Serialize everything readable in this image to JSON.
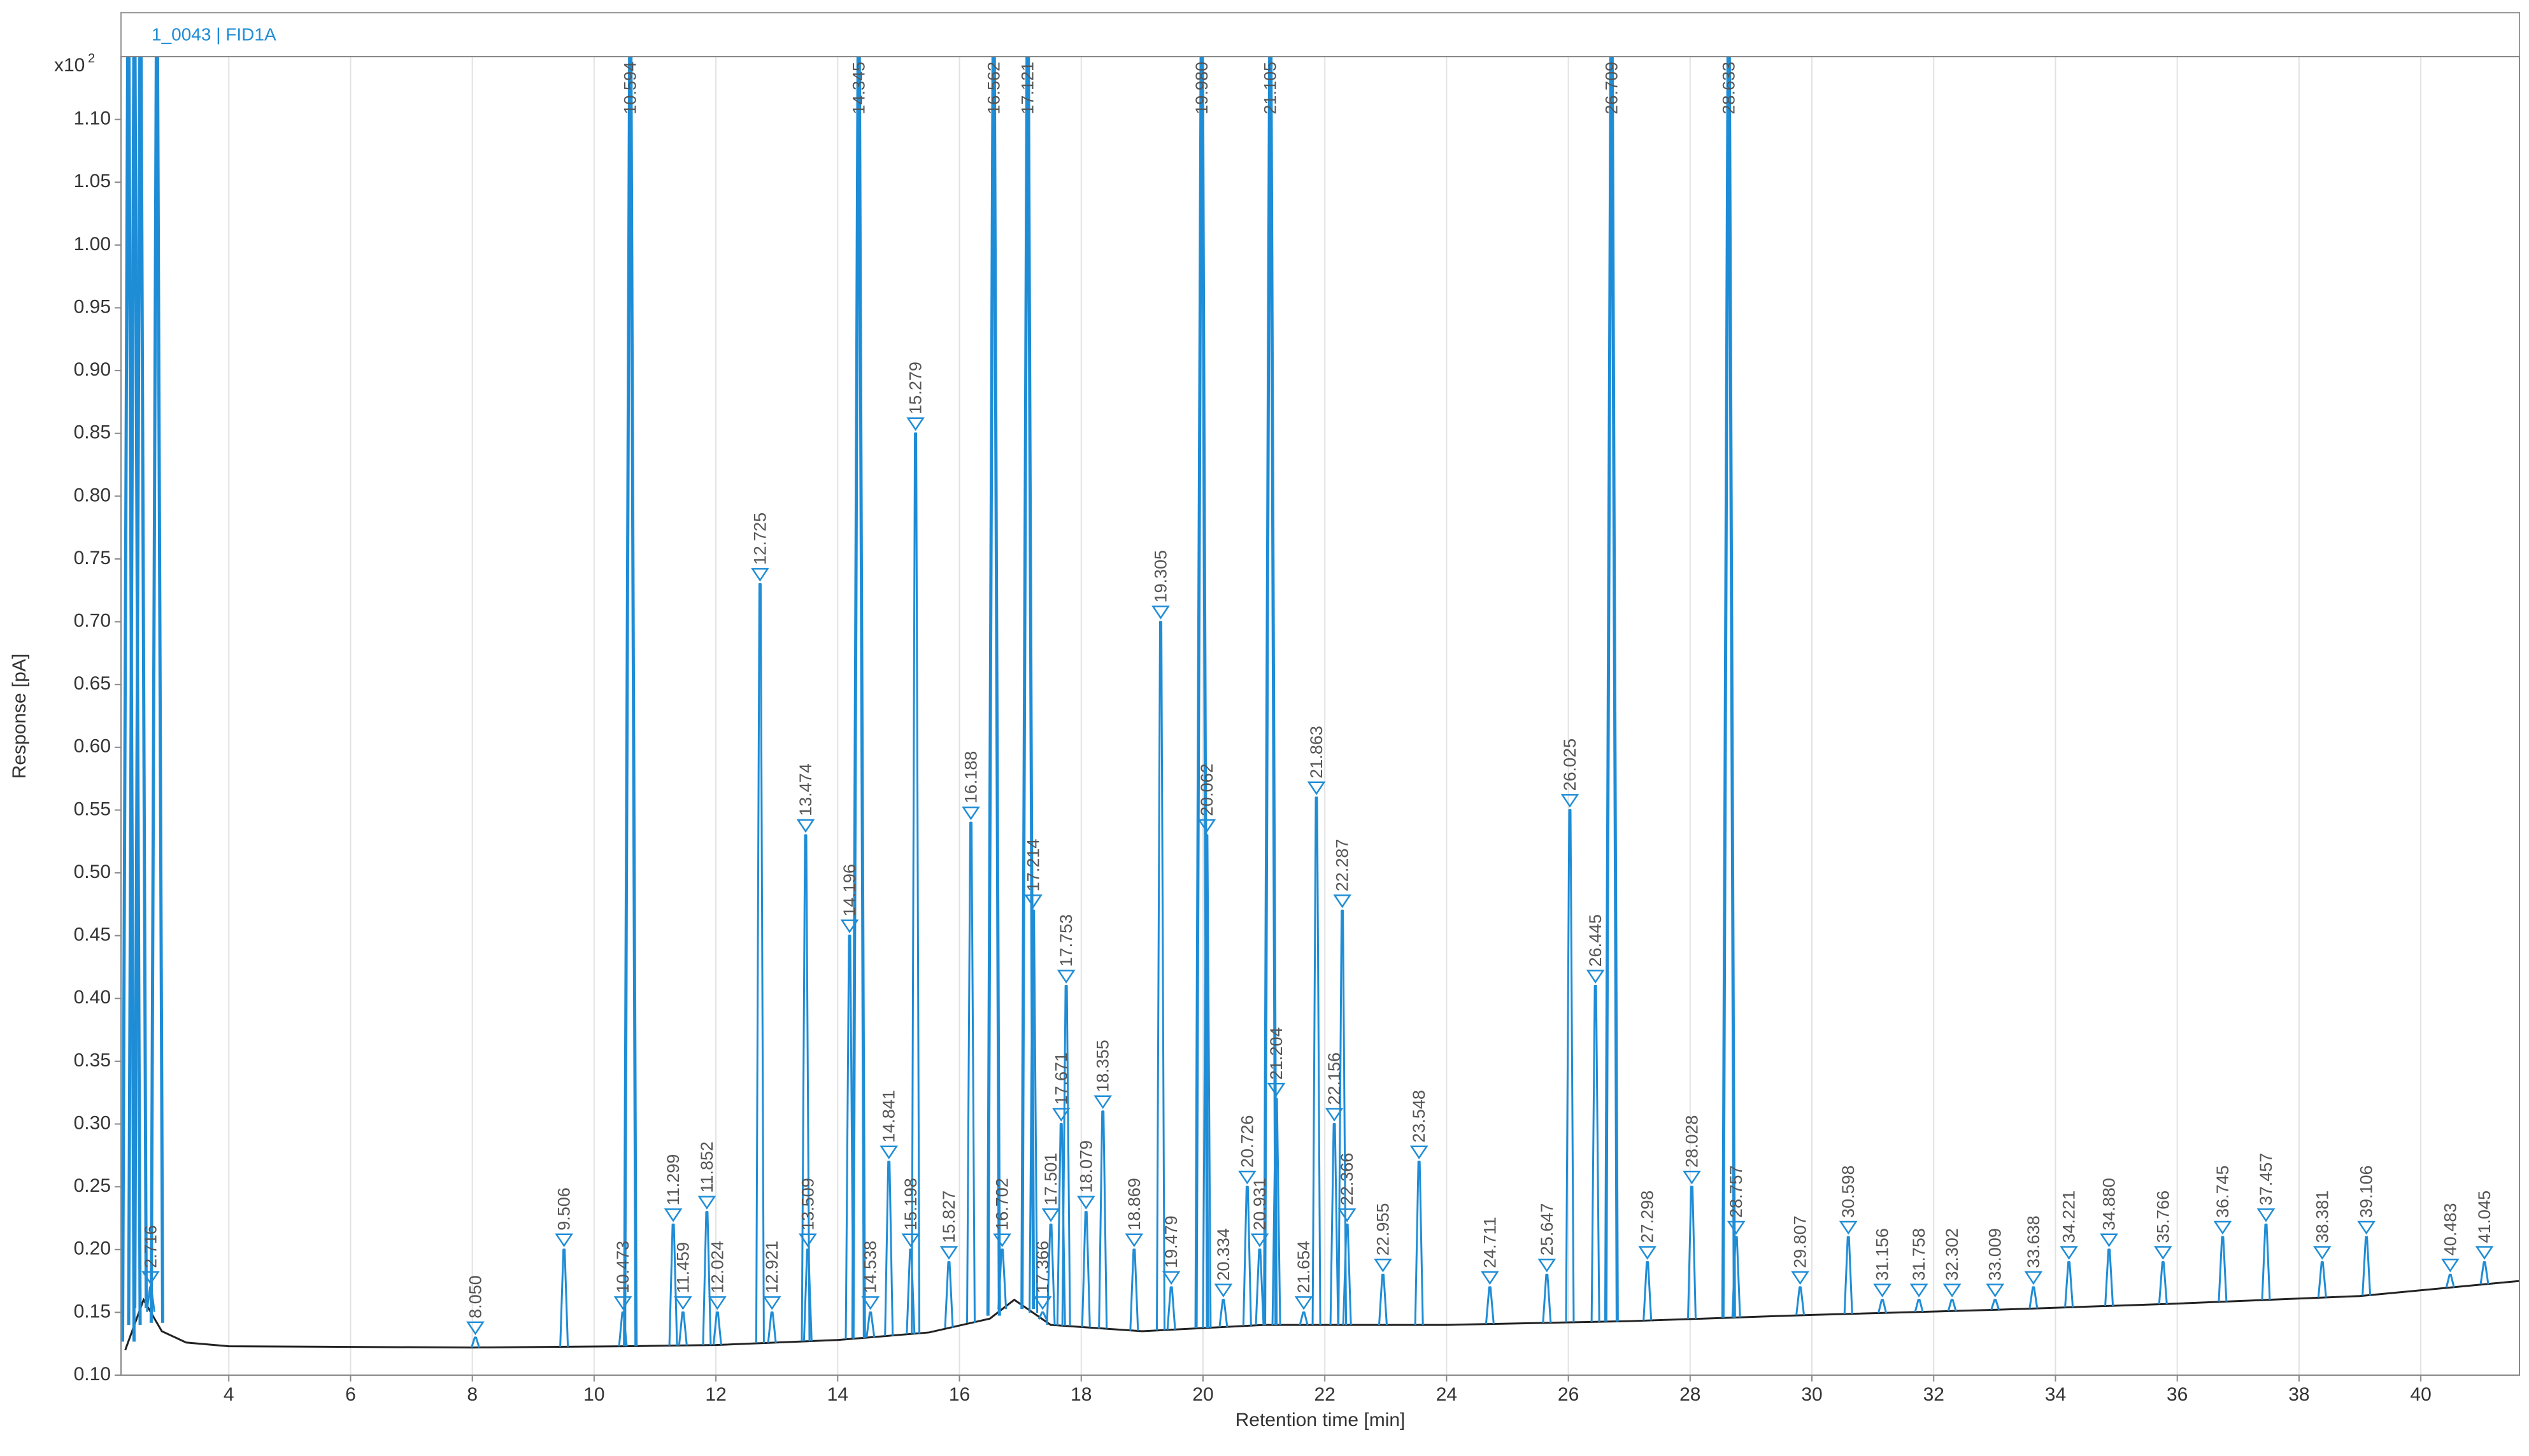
{
  "chart_data": {
    "type": "chromatogram",
    "title": "1_0043 | FID1A",
    "x_label": "Retention time [min]",
    "y_label": "Response [pA]",
    "y_multiplier": "x10",
    "y_multiplier_exponent": "2",
    "xlim": [
      2.23,
      41.62
    ],
    "ylim": [
      0.1,
      1.15
    ],
    "xticks": [
      4,
      6,
      8,
      10,
      12,
      14,
      16,
      18,
      20,
      22,
      24,
      26,
      28,
      30,
      32,
      34,
      36,
      38,
      40
    ],
    "yticks": [
      {
        "value": 0.1,
        "label": "0.10"
      },
      0.15,
      {
        "value": 0.2,
        "label": "0.20"
      },
      0.25,
      {
        "value": 0.3,
        "label": "0.30"
      },
      0.35,
      {
        "value": 0.4,
        "label": "0.40"
      },
      0.45,
      {
        "value": 0.5,
        "label": "0.50"
      },
      0.55,
      {
        "value": 0.6,
        "label": "0.60"
      },
      0.65,
      {
        "value": 0.7,
        "label": "0.70"
      },
      0.75,
      {
        "value": 0.8,
        "label": "0.80"
      },
      0.85,
      {
        "value": 0.9,
        "label": "0.90"
      },
      0.95,
      {
        "value": 1.0,
        "label": "1.00"
      },
      1.05,
      {
        "value": 1.1,
        "label": "1.10"
      }
    ],
    "grid": "x",
    "series": [
      {
        "color": "#1f8dd6",
        "x": [
          2.35,
          2.45,
          2.55,
          2.716,
          2.82,
          8.05,
          9.506,
          10.473,
          10.594,
          11.299,
          11.459,
          11.852,
          12.024,
          12.725,
          12.921,
          13.474,
          13.509,
          14.196,
          14.345,
          14.538,
          14.841,
          15.198,
          15.279,
          15.827,
          16.188,
          16.562,
          16.702,
          17.121,
          17.214,
          17.366,
          17.501,
          17.671,
          17.753,
          18.079,
          18.355,
          18.869,
          19.305,
          19.479,
          19.98,
          20.062,
          20.334,
          20.726,
          20.931,
          21.105,
          21.204,
          21.654,
          21.863,
          22.156,
          22.287,
          22.366,
          22.955,
          23.548,
          24.711,
          25.647,
          26.025,
          26.445,
          26.709,
          27.298,
          28.028,
          28.633,
          28.757,
          29.807,
          30.598,
          31.156,
          31.758,
          32.302,
          33.009,
          33.638,
          34.221,
          34.88,
          35.766,
          36.745,
          37.457,
          38.381,
          39.106,
          40.483,
          41.045
        ],
        "peak_labels": [
          null,
          null,
          null,
          "2.716",
          null,
          "8.050",
          "9.506",
          "10.473",
          "10.594",
          "11.299",
          "11.459",
          "11.852",
          "12.024",
          "12.725",
          "12.921",
          "13.474",
          "13.509",
          "14.196",
          "14.345",
          "14.538",
          "14.841",
          "15.198",
          "15.279",
          "15.827",
          "16.188",
          "16.562",
          "16.702",
          "17.121",
          "17.214",
          "17.366",
          "17.501",
          "17.671",
          "17.753",
          "18.079",
          "18.355",
          "18.869",
          "19.305",
          "19.479",
          "19.980",
          "20.062",
          "20.334",
          "20.726",
          "20.931",
          "21.105",
          "21.204",
          "21.654",
          "21.863",
          "22.156",
          "22.287",
          "22.366",
          "22.955",
          "23.548",
          "24.711",
          "25.647",
          "26.025",
          "26.445",
          "26.709",
          "27.298",
          "28.028",
          "28.633",
          "28.757",
          "29.807",
          "30.598",
          "31.156",
          "31.758",
          "32.302",
          "33.009",
          "33.638",
          "34.221",
          "34.880",
          "35.766",
          "36.745",
          "37.457",
          "38.381",
          "39.106",
          "40.483",
          "41.045"
        ],
        "values": [
          1.15,
          1.15,
          1.15,
          0.17,
          1.15,
          0.13,
          0.2,
          0.15,
          1.15,
          0.22,
          0.15,
          0.23,
          0.15,
          0.73,
          0.15,
          0.53,
          0.2,
          0.45,
          1.15,
          0.15,
          0.27,
          0.2,
          0.85,
          0.19,
          0.54,
          1.15,
          0.2,
          1.15,
          0.47,
          0.15,
          0.22,
          0.3,
          0.41,
          0.23,
          0.31,
          0.2,
          0.7,
          0.17,
          1.15,
          0.53,
          0.16,
          0.25,
          0.2,
          1.15,
          0.32,
          0.15,
          0.56,
          0.3,
          0.47,
          0.22,
          0.18,
          0.27,
          0.17,
          0.18,
          0.55,
          0.41,
          1.15,
          0.19,
          0.25,
          1.15,
          0.21,
          0.17,
          0.21,
          0.16,
          0.16,
          0.16,
          0.16,
          0.17,
          0.19,
          0.2,
          0.19,
          0.21,
          0.22,
          0.19,
          0.21,
          0.18,
          0.19
        ]
      },
      {
        "color": "#222222",
        "x": [
          2.3,
          2.6,
          2.9,
          3.3,
          4,
          8,
          10.5,
          12,
          14,
          15.5,
          16.5,
          16.9,
          17.5,
          19,
          21,
          24,
          27,
          30,
          33,
          36,
          39,
          41.62
        ],
        "values": [
          0.12,
          0.16,
          0.135,
          0.126,
          0.123,
          0.122,
          0.123,
          0.124,
          0.128,
          0.134,
          0.145,
          0.16,
          0.14,
          0.135,
          0.14,
          0.14,
          0.143,
          0.148,
          0.152,
          0.157,
          0.163,
          0.175
        ]
      }
    ]
  }
}
